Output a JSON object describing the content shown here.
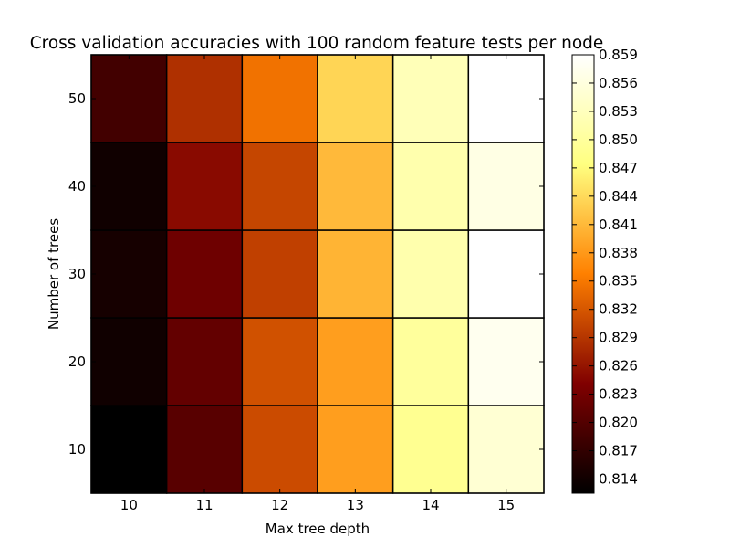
{
  "chart_data": {
    "type": "heatmap",
    "title": "Cross validation accuracies with 100 random feature tests per node",
    "xlabel": "Max tree depth",
    "ylabel": "Number of trees",
    "x": [
      10,
      11,
      12,
      13,
      14,
      15
    ],
    "y": [
      10,
      20,
      30,
      40,
      50
    ],
    "values": [
      [
        0.8125,
        0.8205,
        0.831,
        0.8385,
        0.849,
        0.855
      ],
      [
        0.814,
        0.8215,
        0.8315,
        0.8385,
        0.85,
        0.8575
      ],
      [
        0.8145,
        0.8225,
        0.83,
        0.8405,
        0.8515,
        0.859
      ],
      [
        0.814,
        0.825,
        0.8305,
        0.841,
        0.8515,
        0.8565
      ],
      [
        0.8185,
        0.8285,
        0.8345,
        0.8435,
        0.8525,
        0.859
      ]
    ],
    "colorbar": {
      "min": 0.8125,
      "max": 0.859,
      "ticks": [
        "0.814",
        "0.817",
        "0.820",
        "0.823",
        "0.826",
        "0.829",
        "0.832",
        "0.835",
        "0.838",
        "0.841",
        "0.844",
        "0.847",
        "0.850",
        "0.853",
        "0.856",
        "0.859"
      ]
    },
    "colormap": "afmhot",
    "grid": false
  }
}
